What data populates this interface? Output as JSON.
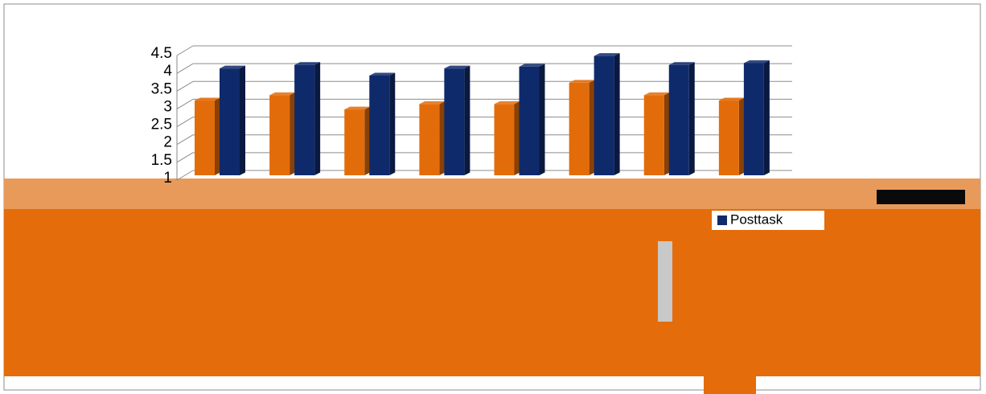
{
  "chart_data": {
    "type": "bar",
    "categories": [
      null,
      null,
      null,
      null,
      null,
      null,
      null,
      null
    ],
    "series": [
      {
        "color": "#e36c0a",
        "values": [
          3.1,
          3.25,
          2.85,
          3.0,
          3.0,
          3.6,
          3.25,
          3.1
        ]
      },
      {
        "name": "Posttask",
        "color": "#0f2a6b",
        "values": [
          4.0,
          4.1,
          3.8,
          4.0,
          4.05,
          4.35,
          4.1,
          4.15
        ]
      }
    ],
    "ylim": [
      1,
      4.5
    ],
    "yticks": [
      1,
      1.5,
      2,
      2.5,
      3,
      3.5,
      4,
      4.5
    ],
    "grid": true,
    "legend": "right"
  }
}
